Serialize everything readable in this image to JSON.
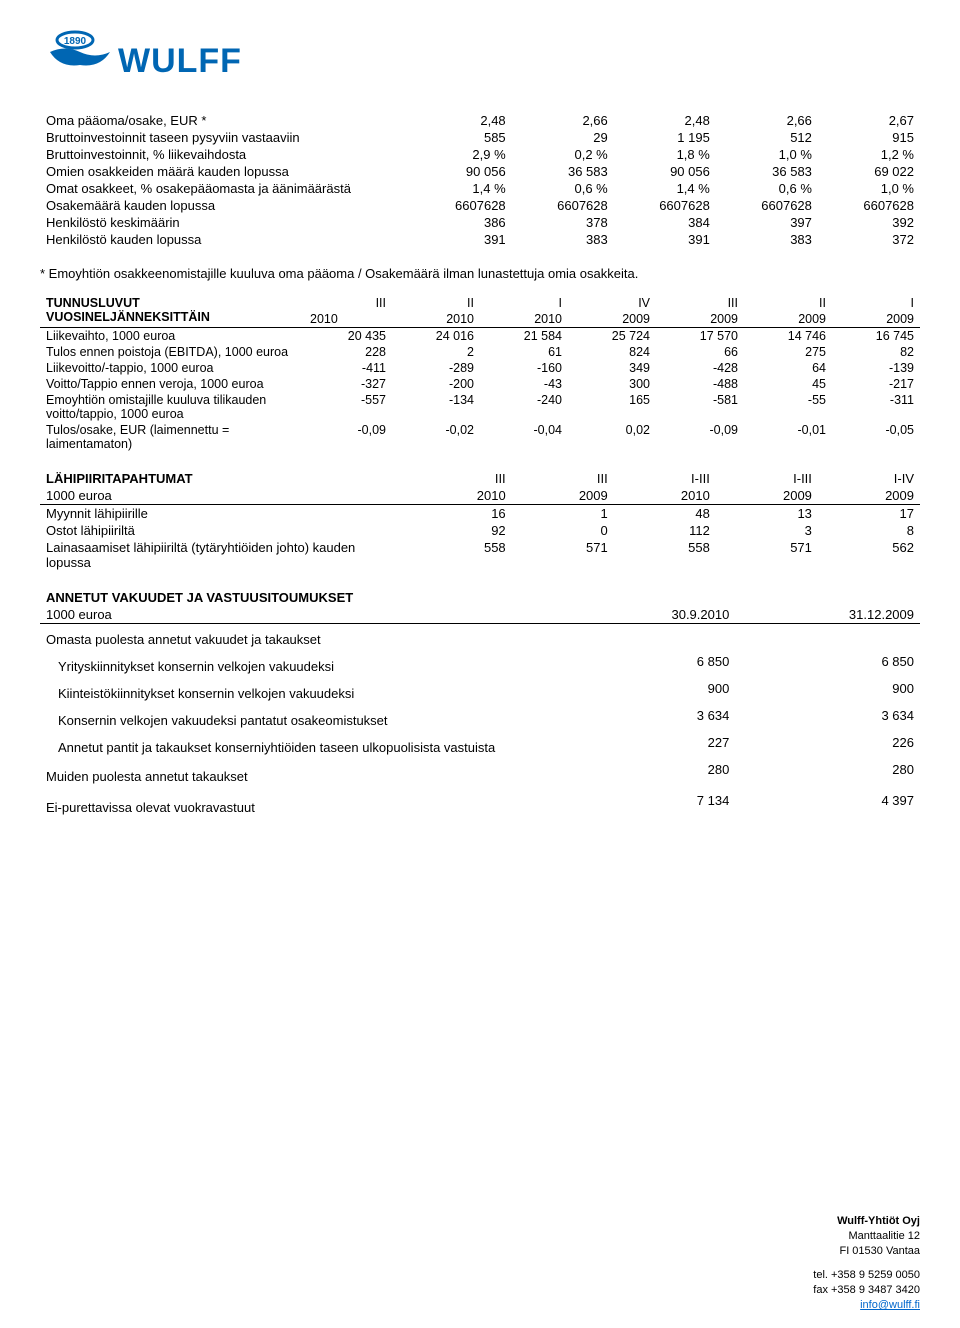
{
  "logo": {
    "text": "WULFF",
    "year": "1890",
    "color": "#0066b3"
  },
  "table1": {
    "rows": [
      {
        "label": "Oma pääoma/osake, EUR *",
        "vals": [
          "2,48",
          "2,66",
          "2,48",
          "2,66",
          "2,67"
        ]
      },
      {
        "label": "Bruttoinvestoinnit taseen pysyviin vastaaviin",
        "vals": [
          "585",
          "29",
          "1 195",
          "512",
          "915"
        ]
      },
      {
        "label": "Bruttoinvestoinnit, % liikevaihdosta",
        "vals": [
          "2,9 %",
          "0,2 %",
          "1,8 %",
          "1,0 %",
          "1,2 %"
        ]
      },
      {
        "label": "Omien osakkeiden määrä kauden lopussa",
        "vals": [
          "90 056",
          "36 583",
          "90 056",
          "36 583",
          "69 022"
        ]
      },
      {
        "label": "Omat osakkeet, % osakepääomasta ja äänimäärästä",
        "vals": [
          "1,4 %",
          "0,6 %",
          "1,4 %",
          "0,6 %",
          "1,0 %"
        ]
      },
      {
        "label": "Osakemäärä kauden lopussa",
        "vals": [
          "6607628",
          "6607628",
          "6607628",
          "6607628",
          "6607628"
        ]
      },
      {
        "label": "Henkilöstö keskimäärin",
        "vals": [
          "386",
          "378",
          "384",
          "397",
          "392"
        ]
      },
      {
        "label": "Henkilöstö kauden lopussa",
        "vals": [
          "391",
          "383",
          "391",
          "383",
          "372"
        ]
      }
    ]
  },
  "footnote": "* Emoyhtiön osakkeenomistajille kuuluva oma pääoma / Osakemäärä ilman lunastettuja omia osakkeita.",
  "table2": {
    "head_label1": "TUNNUSLUVUT",
    "head_label2": "VUOSINELJÄNNEKSITTÄIN",
    "periods_top": [
      "III",
      "II",
      "I",
      "IV",
      "III",
      "II",
      "I"
    ],
    "periods_year": [
      "2010",
      "2010",
      "2010",
      "2009",
      "2009",
      "2009",
      "2009"
    ],
    "rows": [
      {
        "label": "Liikevaihto, 1000 euroa",
        "vals": [
          "20 435",
          "24 016",
          "21 584",
          "25 724",
          "17 570",
          "14 746",
          "16 745"
        ]
      },
      {
        "label": "Tulos ennen poistoja (EBITDA), 1000 euroa",
        "vals": [
          "228",
          "2",
          "61",
          "824",
          "66",
          "275",
          "82"
        ]
      },
      {
        "label": "Liikevoitto/-tappio, 1000 euroa",
        "vals": [
          "-411",
          "-289",
          "-160",
          "349",
          "-428",
          "64",
          "-139"
        ]
      },
      {
        "label": "Voitto/Tappio ennen veroja, 1000 euroa",
        "vals": [
          "-327",
          "-200",
          "-43",
          "300",
          "-488",
          "45",
          "-217"
        ]
      },
      {
        "label": "Emoyhtiön omistajille kuuluva tilikauden voitto/tappio, 1000 euroa",
        "vals": [
          "-557",
          "-134",
          "-240",
          "165",
          "-581",
          "-55",
          "-311"
        ]
      },
      {
        "label": "Tulos/osake, EUR (laimennettu = laimentamaton)",
        "vals": [
          "-0,09",
          "-0,02",
          "-0,04",
          "0,02",
          "-0,09",
          "-0,01",
          "-0,05"
        ]
      }
    ]
  },
  "table3": {
    "head_label": "LÄHIPIIRITAPAHTUMAT",
    "cols": [
      "III",
      "III",
      "I-III",
      "I-III",
      "I-IV"
    ],
    "unit_row": {
      "label": "1000 euroa",
      "vals": [
        "2010",
        "2009",
        "2010",
        "2009",
        "2009"
      ]
    },
    "rows": [
      {
        "label": "Myynnit lähipiirille",
        "vals": [
          "16",
          "1",
          "48",
          "13",
          "17"
        ]
      },
      {
        "label": "Ostot lähipiiriltä",
        "vals": [
          "92",
          "0",
          "112",
          "3",
          "8"
        ]
      },
      {
        "label": "Lainasaamiset lähipiiriltä (tytäryhtiöiden johto) kauden lopussa",
        "vals": [
          "558",
          "571",
          "558",
          "571",
          "562"
        ]
      }
    ]
  },
  "table4": {
    "head": "ANNETUT VAKUUDET JA VASTUUSITOUMUKSET",
    "unit_row": {
      "label": "1000 euroa",
      "vals": [
        "30.9.2010",
        "31.12.2009"
      ]
    },
    "section": "Omasta puolesta annetut vakuudet ja takaukset",
    "rows": [
      {
        "label": "Yrityskiinnitykset konsernin velkojen vakuudeksi",
        "vals": [
          "6 850",
          "6 850"
        ]
      },
      {
        "label": "Kiinteistökiinnitykset konsernin velkojen vakuudeksi",
        "vals": [
          "900",
          "900"
        ]
      },
      {
        "label": "Konsernin velkojen vakuudeksi pantatut osakeomistukset",
        "vals": [
          "3 634",
          "3 634"
        ]
      },
      {
        "label": "Annetut pantit ja takaukset konserniyhtiöiden taseen ulkopuolisista vastuista",
        "vals": [
          "227",
          "226"
        ]
      }
    ],
    "rows2": [
      {
        "label": "Muiden puolesta annetut takaukset",
        "vals": [
          "280",
          "280"
        ]
      },
      {
        "label": "Ei-purettavissa olevat vuokravastuut",
        "vals": [
          "7 134",
          "4 397"
        ]
      }
    ]
  },
  "footer": {
    "company": "Wulff-Yhtiöt Oyj",
    "addr1": "Manttaalitie 12",
    "addr2": "FI 01530 Vantaa",
    "tel": "tel. +358 9 5259 0050",
    "fax": "fax +358 9 3487 3420",
    "email": "info@wulff.fi"
  }
}
